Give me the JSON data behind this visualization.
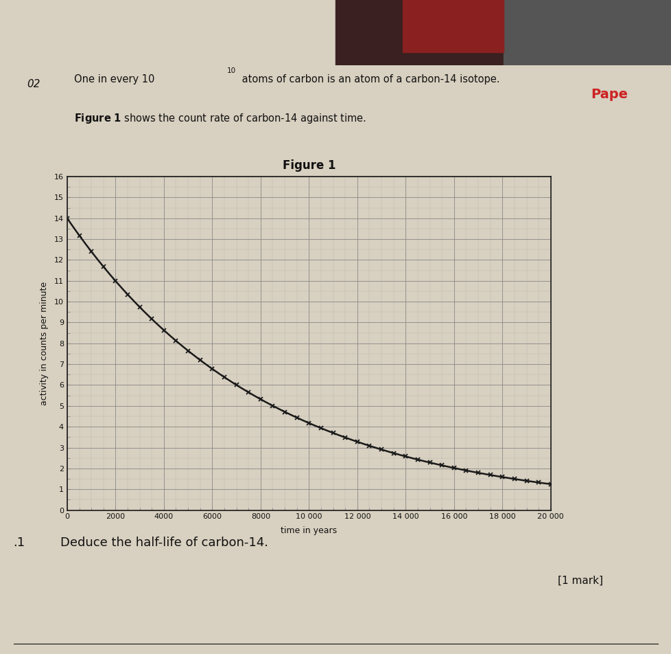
{
  "title": "Figure 1",
  "xlabel": "time in years",
  "ylabel": "activity in counts per minute",
  "xlim": [
    0,
    20000
  ],
  "ylim": [
    0,
    16
  ],
  "x_ticks": [
    0,
    2000,
    4000,
    6000,
    8000,
    10000,
    12000,
    14000,
    16000,
    18000,
    20000
  ],
  "x_tick_labels": [
    "0",
    "2000",
    "4000",
    "6000",
    "8000",
    "10 000",
    "12 000",
    "14 000",
    "16 000",
    "18 000",
    "20 000"
  ],
  "y_ticks": [
    0,
    1,
    2,
    3,
    4,
    5,
    6,
    7,
    8,
    9,
    10,
    11,
    12,
    13,
    14,
    15,
    16
  ],
  "initial_activity": 14.0,
  "half_life": 5730,
  "curve_color": "#1a1a1a",
  "marker_color": "#1a1a1a",
  "grid_major_color": "#888888",
  "grid_minor_color": "#bbbbbb",
  "background_color": "#d8d0c0",
  "page_color": "#cec6b4",
  "text_color": "#111111",
  "photo_color_top": "#1a1a1a",
  "title_fontsize": 12,
  "label_fontsize": 9,
  "tick_fontsize": 8
}
